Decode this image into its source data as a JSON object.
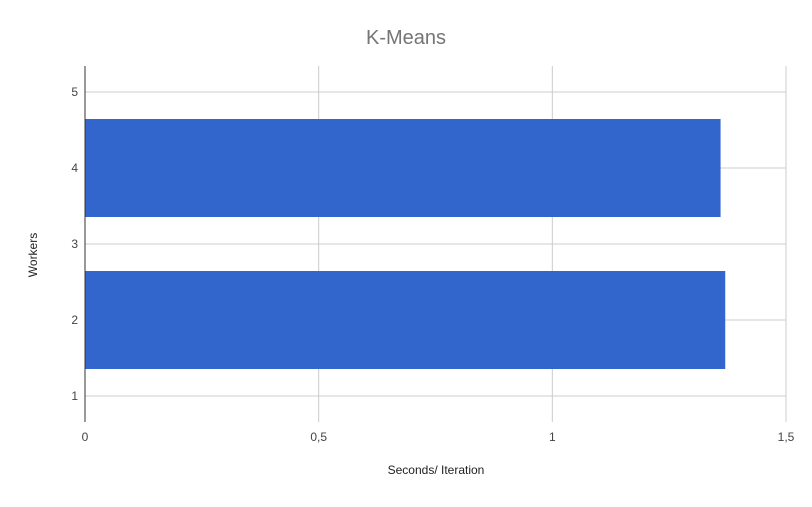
{
  "chart_data": {
    "type": "bar",
    "orientation": "horizontal",
    "title": "K-Means",
    "xlabel": "Seconds/ Iteration",
    "ylabel": "Workers",
    "xlim": [
      0,
      1.5
    ],
    "ylim": [
      1,
      5
    ],
    "x_ticks": [
      0,
      0.5,
      1,
      1.5
    ],
    "x_tick_labels": [
      "0",
      "0,5",
      "1",
      "1,5"
    ],
    "y_ticks": [
      1,
      2,
      3,
      4,
      5
    ],
    "y_tick_labels": [
      "1",
      "2",
      "3",
      "4",
      "5"
    ],
    "categories": [
      "2",
      "4"
    ],
    "bars": [
      {
        "workers": 2,
        "value": 1.37
      },
      {
        "workers": 4,
        "value": 1.36
      }
    ],
    "bar_color": "#3366cc",
    "grid": true,
    "legend": "none"
  }
}
